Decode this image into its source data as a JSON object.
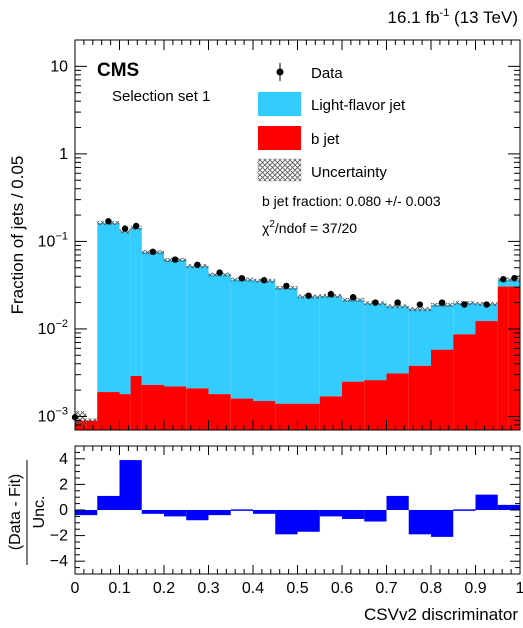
{
  "chart_data": [
    {
      "type": "bar",
      "panel": "main",
      "stacked": true,
      "log_y": true,
      "ylim": [
        0.0007,
        20
      ],
      "xlim": [
        0,
        1
      ],
      "bin_width": 0.05,
      "bin_edges": [
        0,
        0.025,
        0.05,
        0.1,
        0.125,
        0.15,
        0.2,
        0.25,
        0.3,
        0.35,
        0.4,
        0.45,
        0.5,
        0.55,
        0.6,
        0.65,
        0.7,
        0.75,
        0.8,
        0.85,
        0.9,
        0.95,
        0.975,
        1.0
      ],
      "ylabel": "Fraction of jets / 0.05",
      "lumi_label": "16.1 fb⁻¹ (13 TeV)",
      "experiment": "CMS",
      "selection": "Selection set 1",
      "y_ticks": [
        {
          "v": 0.001,
          "base": "10",
          "exp": "−3"
        },
        {
          "v": 0.01,
          "base": "10",
          "exp": "−2"
        },
        {
          "v": 0.1,
          "base": "10",
          "exp": "−1"
        },
        {
          "v": 1,
          "base": "1",
          "exp": ""
        },
        {
          "v": 10,
          "base": "10",
          "exp": ""
        }
      ],
      "series": [
        {
          "name": "b jet",
          "color": "#ff0000",
          "values": [
            0.0009,
            0.0009,
            0.0019,
            0.0018,
            0.0029,
            0.0023,
            0.0022,
            0.0021,
            0.0018,
            0.0016,
            0.0015,
            0.0014,
            0.0014,
            0.0017,
            0.0025,
            0.0026,
            0.0031,
            0.0038,
            0.0058,
            0.0087,
            0.0123,
            0.0305,
            0.0305
          ]
        },
        {
          "name": "Light-flavor jet",
          "color": "#33ccff",
          "values": [
            0.0,
            0.0,
            0.16,
            0.128,
            0.14,
            0.073,
            0.059,
            0.05,
            0.04,
            0.035,
            0.034,
            0.028,
            0.022,
            0.022,
            0.019,
            0.017,
            0.015,
            0.013,
            0.013,
            0.011,
            0.007,
            0.006,
            0.006
          ]
        }
      ],
      "uncertainty_name": "Uncertainty",
      "data_name": "Data",
      "data_points": [
        {
          "x": 0.0,
          "y": 0.00098
        },
        {
          "x": 0.075,
          "y": 0.17
        },
        {
          "x": 0.1125,
          "y": 0.14
        },
        {
          "x": 0.1375,
          "y": 0.15
        },
        {
          "x": 0.175,
          "y": 0.076
        },
        {
          "x": 0.225,
          "y": 0.062
        },
        {
          "x": 0.275,
          "y": 0.054
        },
        {
          "x": 0.325,
          "y": 0.044
        },
        {
          "x": 0.375,
          "y": 0.038
        },
        {
          "x": 0.425,
          "y": 0.036
        },
        {
          "x": 0.475,
          "y": 0.031
        },
        {
          "x": 0.525,
          "y": 0.024
        },
        {
          "x": 0.575,
          "y": 0.025
        },
        {
          "x": 0.625,
          "y": 0.023
        },
        {
          "x": 0.675,
          "y": 0.02
        },
        {
          "x": 0.725,
          "y": 0.02
        },
        {
          "x": 0.775,
          "y": 0.019
        },
        {
          "x": 0.825,
          "y": 0.02
        },
        {
          "x": 0.875,
          "y": 0.019
        },
        {
          "x": 0.925,
          "y": 0.019
        },
        {
          "x": 0.9625,
          "y": 0.037
        },
        {
          "x": 0.9875,
          "y": 0.038
        }
      ],
      "annotations": [
        {
          "id": "bfrac",
          "text": "b jet fraction: 0.080 +/- 0.003"
        },
        {
          "id": "chi2_pre",
          "text": "χ"
        },
        {
          "id": "chi2_sup",
          "text": "2"
        },
        {
          "id": "chi2_post",
          "text": "/ndof = 37/20"
        }
      ],
      "legend_placement": "top-right"
    },
    {
      "type": "bar",
      "panel": "ratio",
      "xlabel": "CSVv2 discriminator",
      "ylabel_top": "(Data - Fit)",
      "ylabel_bottom": "Unc.",
      "ylim": [
        -5,
        5
      ],
      "y_ticks": [
        4,
        2,
        0,
        -2,
        -4
      ],
      "x_ticks": [
        0,
        0.1,
        0.2,
        0.3,
        0.4,
        0.5,
        0.6,
        0.7,
        0.8,
        0.9,
        1
      ],
      "x_tick_labels": [
        "0",
        "0.1",
        "0.2",
        "0.3",
        "0.4",
        "0.5",
        "0.6",
        "0.7",
        "0.8",
        "0.9",
        "1"
      ],
      "bars_color": "#0000ff",
      "bins": [
        {
          "x0": 0.0,
          "x1": 0.05,
          "v": -0.4
        },
        {
          "x0": 0.05,
          "x1": 0.1,
          "v": 1.1
        },
        {
          "x0": 0.1,
          "x1": 0.15,
          "v": 3.9
        },
        {
          "x0": 0.15,
          "x1": 0.2,
          "v": -0.3
        },
        {
          "x0": 0.2,
          "x1": 0.25,
          "v": -0.5
        },
        {
          "x0": 0.25,
          "x1": 0.3,
          "v": -0.8
        },
        {
          "x0": 0.3,
          "x1": 0.35,
          "v": -0.4
        },
        {
          "x0": 0.35,
          "x1": 0.4,
          "v": 0.05
        },
        {
          "x0": 0.4,
          "x1": 0.45,
          "v": -0.3
        },
        {
          "x0": 0.45,
          "x1": 0.5,
          "v": -1.9
        },
        {
          "x0": 0.5,
          "x1": 0.55,
          "v": -1.7
        },
        {
          "x0": 0.55,
          "x1": 0.6,
          "v": -0.5
        },
        {
          "x0": 0.6,
          "x1": 0.65,
          "v": -0.7
        },
        {
          "x0": 0.65,
          "x1": 0.7,
          "v": -0.9
        },
        {
          "x0": 0.7,
          "x1": 0.75,
          "v": 1.1
        },
        {
          "x0": 0.75,
          "x1": 0.8,
          "v": -1.9
        },
        {
          "x0": 0.8,
          "x1": 0.85,
          "v": -2.1
        },
        {
          "x0": 0.85,
          "x1": 0.9,
          "v": 0.05
        },
        {
          "x0": 0.9,
          "x1": 0.95,
          "v": 1.2
        },
        {
          "x0": 0.95,
          "x1": 1.0,
          "v": 0.4
        }
      ]
    }
  ]
}
